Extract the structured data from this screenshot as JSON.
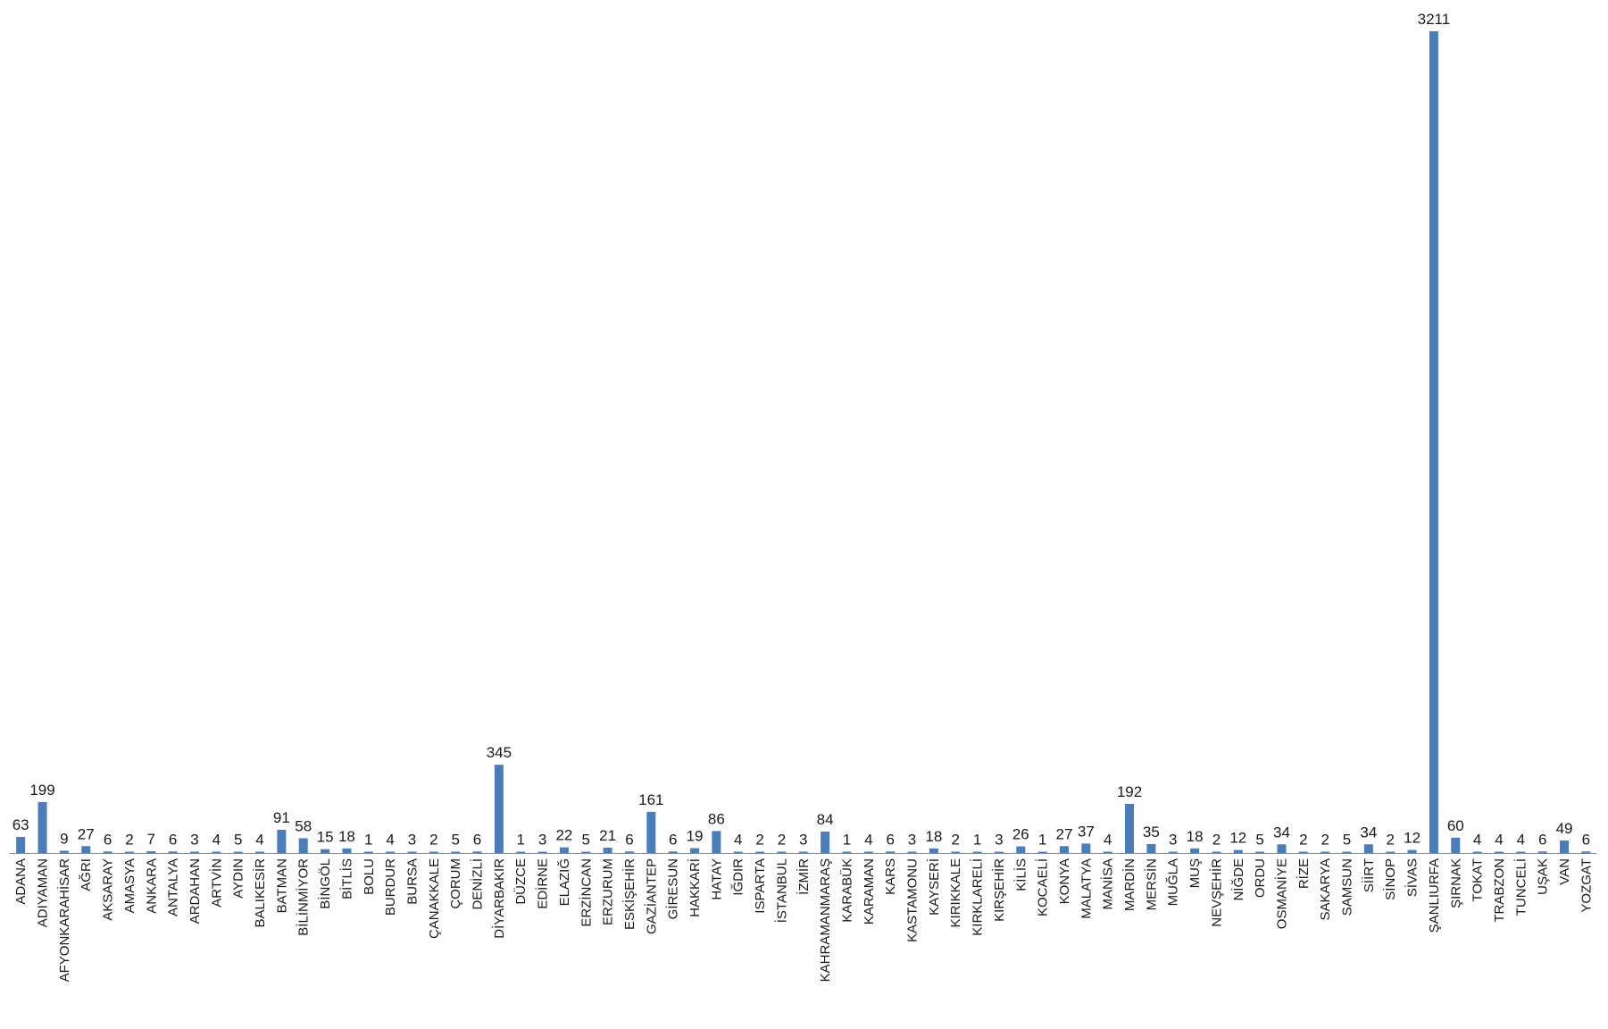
{
  "chart_data": {
    "type": "bar",
    "title": "",
    "xlabel": "",
    "ylabel": "",
    "ylim": [
      0,
      3211
    ],
    "grid": false,
    "legend": "none",
    "bar_color": "#4a7ebb",
    "categories": [
      "ADANA",
      "ADIYAMAN",
      "AFYONKARAHİSAR",
      "AĞRI",
      "AKSARAY",
      "AMASYA",
      "ANKARA",
      "ANTALYA",
      "ARDAHAN",
      "ARTVİN",
      "AYDIN",
      "BALIKESİR",
      "BATMAN",
      "BİLİNMİYOR",
      "BİNGÖL",
      "BİTLİS",
      "BOLU",
      "BURDUR",
      "BURSA",
      "ÇANAKKALE",
      "ÇORUM",
      "DENİZLİ",
      "DİYARBAKIR",
      "DÜZCE",
      "EDİRNE",
      "ELAZIĞ",
      "ERZİNCAN",
      "ERZURUM",
      "ESKİŞEHİR",
      "GAZİANTEP",
      "GİRESUN",
      "HAKKARİ",
      "HATAY",
      "IĞDIR",
      "ISPARTA",
      "İSTANBUL",
      "İZMİR",
      "KAHRAMANMARAŞ",
      "KARABÜK",
      "KARAMAN",
      "KARS",
      "KASTAMONU",
      "KAYSERİ",
      "KIRIKKALE",
      "KIRKLARELİ",
      "KIRŞEHİR",
      "KİLİS",
      "KOCAELİ",
      "KONYA",
      "MALATYA",
      "MANİSA",
      "MARDİN",
      "MERSİN",
      "MUĞLA",
      "MUŞ",
      "NEVŞEHİR",
      "NİĞDE",
      "ORDU",
      "OSMANİYE",
      "RİZE",
      "SAKARYA",
      "SAMSUN",
      "SİİRT",
      "SİNOP",
      "SİVAS",
      "ŞANLIURFA",
      "ŞIRNAK",
      "TOKAT",
      "TRABZON",
      "TUNCELİ",
      "UŞAK",
      "VAN",
      "YOZGAT"
    ],
    "values": [
      63,
      199,
      9,
      27,
      6,
      2,
      7,
      6,
      3,
      4,
      5,
      4,
      91,
      58,
      15,
      18,
      1,
      4,
      3,
      2,
      5,
      6,
      345,
      1,
      3,
      22,
      5,
      21,
      6,
      161,
      6,
      19,
      86,
      4,
      2,
      2,
      3,
      84,
      1,
      4,
      6,
      3,
      18,
      2,
      1,
      3,
      26,
      1,
      27,
      37,
      4,
      192,
      35,
      3,
      18,
      2,
      12,
      5,
      34,
      2,
      2,
      5,
      34,
      2,
      12,
      3211,
      60,
      4,
      4,
      4,
      6,
      49,
      6
    ]
  }
}
